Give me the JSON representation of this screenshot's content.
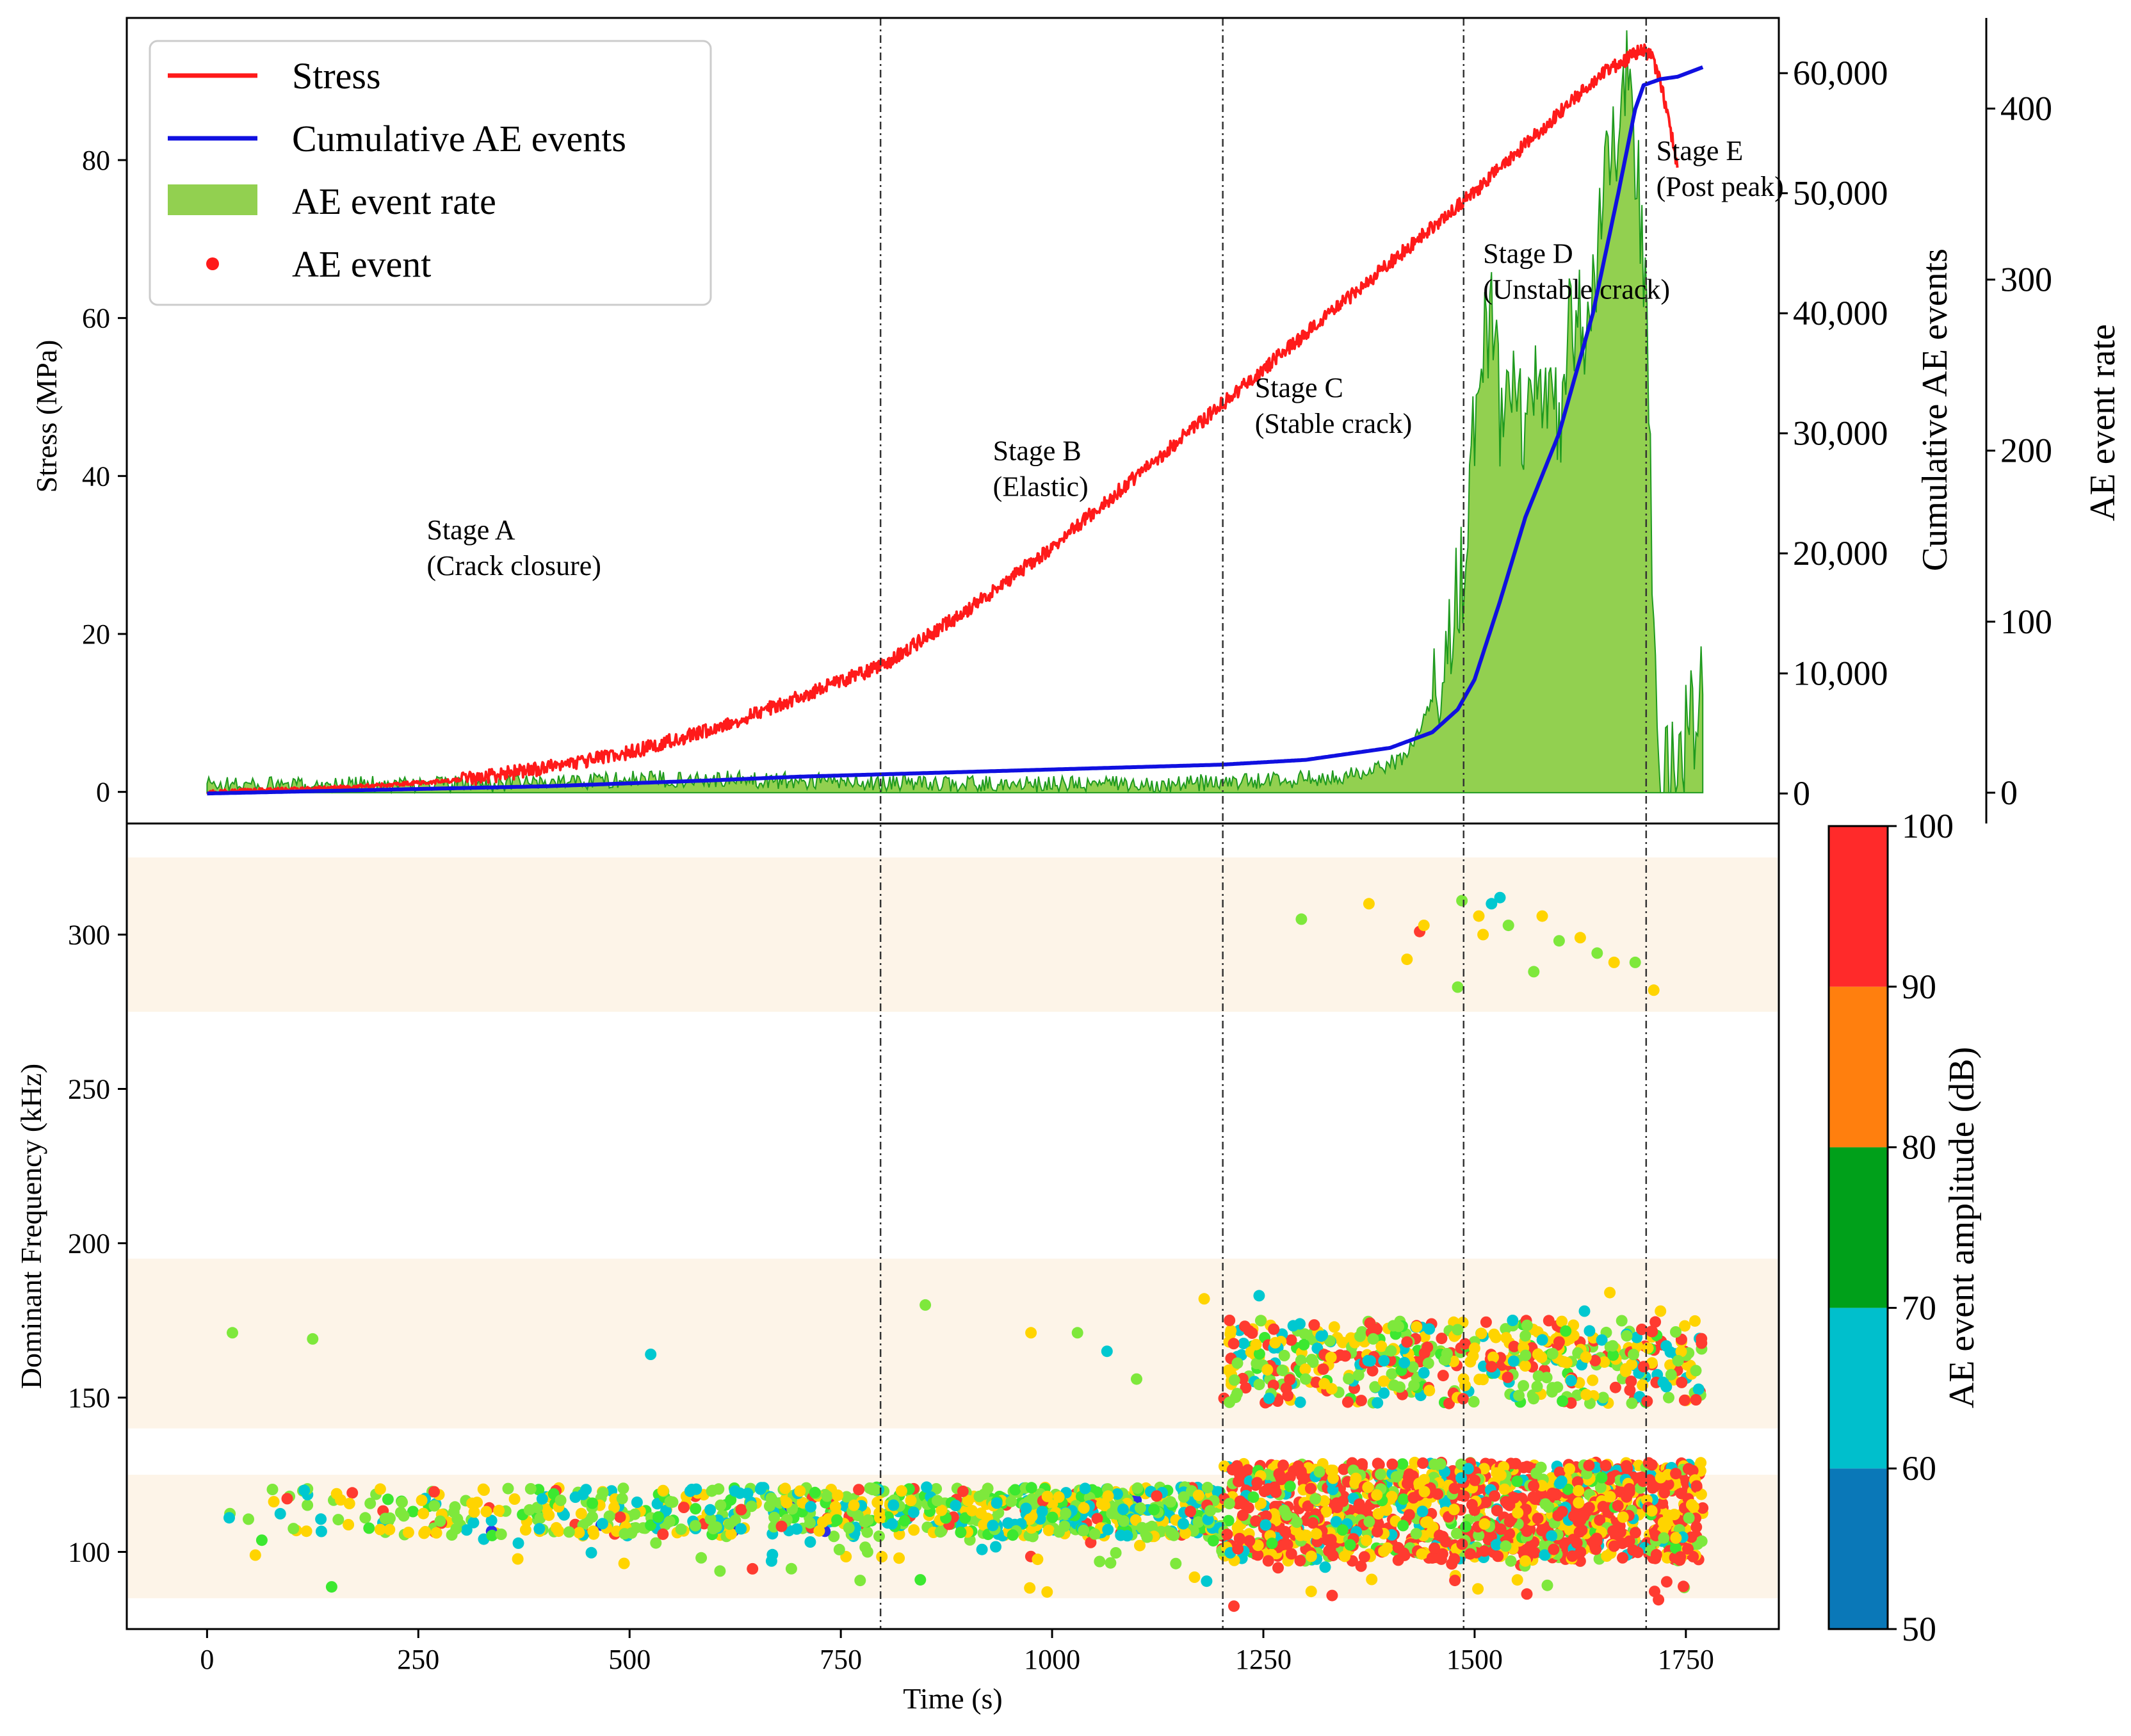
{
  "chart_data": [
    {
      "type": "line",
      "panel": "top",
      "xlabel": "",
      "ylabel": "Stress (MPa)",
      "xlim": [
        -95,
        1860
      ],
      "ylim": [
        -4,
        98
      ],
      "yticks": [
        0,
        20,
        40,
        60,
        80
      ],
      "grid": false,
      "legend": {
        "position": "top-left",
        "entries": [
          {
            "label": "Stress",
            "kind": "line",
            "color": "#ff1a1a"
          },
          {
            "label": "Cumulative AE events",
            "kind": "line",
            "color": "#1010e0"
          },
          {
            "label": "AE event rate",
            "kind": "patch",
            "color": "#92d050"
          },
          {
            "label": "AE event",
            "kind": "dot",
            "color": "#ff1a1a"
          }
        ]
      },
      "series": [
        {
          "name": "Stress",
          "axis": "Stress (MPa)",
          "color": "#ff1a1a",
          "x": [
            0,
            100,
            200,
            300,
            400,
            500,
            600,
            700,
            800,
            900,
            1000,
            1100,
            1200,
            1300,
            1400,
            1500,
            1600,
            1650,
            1700,
            1710,
            1720,
            1730,
            1740
          ],
          "y": [
            0,
            0.3,
            0.8,
            1.5,
            3,
            5,
            8,
            12,
            16,
            23,
            31,
            40,
            49,
            58,
            67,
            76,
            86,
            91,
            94,
            93,
            90,
            85,
            79
          ]
        },
        {
          "name": "Cumulative AE events",
          "axis": "Cumulative AE events",
          "color": "#1010e0",
          "x": [
            0,
            100,
            200,
            300,
            400,
            500,
            600,
            700,
            800,
            900,
            1000,
            1100,
            1200,
            1300,
            1400,
            1450,
            1480,
            1500,
            1530,
            1560,
            1600,
            1640,
            1670,
            1690,
            1700,
            1720,
            1740,
            1770
          ],
          "y": [
            0,
            150,
            300,
            450,
            600,
            850,
            1100,
            1400,
            1600,
            1800,
            2000,
            2200,
            2400,
            2800,
            3800,
            5100,
            7000,
            9500,
            16000,
            23000,
            30000,
            40000,
            50000,
            57000,
            59000,
            59500,
            59700,
            60500
          ]
        },
        {
          "name": "AE event rate",
          "axis": "AE event rate",
          "color": "#92d050",
          "x": [
            0,
            100,
            200,
            300,
            400,
            500,
            600,
            700,
            800,
            900,
            1000,
            1100,
            1200,
            1300,
            1380,
            1420,
            1450,
            1470,
            1490,
            1500,
            1510,
            1520,
            1530,
            1545,
            1560,
            1580,
            1600,
            1615,
            1630,
            1650,
            1665,
            1680,
            1695,
            1705,
            1710,
            1720,
            1730,
            1745,
            1760,
            1770
          ],
          "y": [
            3,
            2,
            3,
            3,
            4,
            6,
            6,
            5,
            4,
            3,
            3,
            3,
            4,
            6,
            10,
            20,
            50,
            90,
            140,
            210,
            250,
            275,
            220,
            230,
            200,
            240,
            210,
            280,
            260,
            330,
            380,
            420,
            350,
            250,
            120,
            10,
            5,
            20,
            40,
            70
          ]
        }
      ],
      "right_axes": [
        {
          "label": "Cumulative AE events",
          "ylim": [
            -2500,
            64600
          ],
          "ticks": [
            "0",
            "10,000",
            "20,000",
            "30,000",
            "40,000",
            "50,000",
            "60,000"
          ]
        },
        {
          "label": "AE event rate",
          "ylim": [
            -18,
            453
          ],
          "ticks": [
            "0",
            "100",
            "200",
            "300",
            "400"
          ]
        }
      ],
      "vertical_lines": [
        797,
        1202,
        1487,
        1703
      ],
      "annotations": [
        {
          "line1": "Stage A",
          "line2": "(Crack closure)",
          "x": 260,
          "y": 32
        },
        {
          "line1": "Stage B",
          "line2": "(Elastic)",
          "x": 930,
          "y": 42
        },
        {
          "line1": "Stage C",
          "line2": "(Stable crack)",
          "x": 1240,
          "y": 50
        },
        {
          "line1": "Stage D",
          "line2": "(Unstable crack)",
          "x": 1510,
          "y": 67
        },
        {
          "line1": "Stage E",
          "line2": "(Post peak)",
          "x": 1715,
          "y": 80
        }
      ]
    },
    {
      "type": "scatter",
      "panel": "bottom",
      "xlabel": "Time (s)",
      "ylabel": "Dominant Frequency (kHz)",
      "xlim": [
        -95,
        1860
      ],
      "ylim": [
        75,
        336
      ],
      "xticks": [
        0,
        250,
        500,
        750,
        1000,
        1250,
        1500,
        1750
      ],
      "yticks": [
        100,
        150,
        200,
        250,
        300
      ],
      "frequency_bands": [
        [
          85,
          125
        ],
        [
          140,
          195
        ],
        [
          275,
          325
        ]
      ],
      "band_color": "#fdf4e8",
      "colorbar": {
        "label": "AE event amplitude (dB)",
        "range": [
          50,
          100
        ],
        "ticks": [
          "50",
          "60",
          "70",
          "80",
          "90",
          "100"
        ],
        "bins": [
          {
            "from": 50,
            "to": 60,
            "color": "#0a78b8"
          },
          {
            "from": 60,
            "to": 70,
            "color": "#00bfcc"
          },
          {
            "from": 70,
            "to": 80,
            "color": "#00a01a"
          },
          {
            "from": 80,
            "to": 90,
            "color": "#ff7f0e"
          },
          {
            "from": 90,
            "to": 100,
            "color": "#ff2a2a"
          }
        ]
      },
      "point_colors": [
        "#00c8d0",
        "#7ee83c",
        "#3ce830",
        "#ffd400",
        "#ff3b30",
        "#2c2ee8"
      ],
      "series": [
        {
          "x": [
            30,
            125,
            525,
            850,
            975,
            1030,
            1065,
            1100,
            1180,
            1210,
            1245,
            1300,
            1330,
            1380,
            1420,
            1440,
            1480,
            1500,
            1520,
            1545,
            1560,
            1575,
            1600,
            1630,
            1660,
            1680,
            1700,
            1720
          ],
          "y": [
            171,
            169,
            164,
            180,
            171,
            171,
            165,
            156,
            182,
            175,
            183,
            156,
            163,
            169,
            168,
            158,
            172,
            166,
            160,
            175,
            170,
            164,
            168,
            178,
            184,
            170,
            160,
            178
          ],
          "amplitude": [
            72,
            72,
            65,
            72,
            85,
            72,
            65,
            72,
            85,
            95,
            65,
            72,
            85,
            72,
            95,
            65,
            72,
            85,
            95,
            65,
            72,
            85,
            95,
            65,
            85,
            72,
            95,
            85
          ]
        },
        {
          "x": [
            1295,
            1375,
            1420,
            1435,
            1440,
            1480,
            1485,
            1505,
            1510,
            1520,
            1530,
            1540,
            1570,
            1580,
            1600,
            1625,
            1645,
            1665,
            1690,
            1712
          ],
          "y": [
            305,
            310,
            292,
            301,
            303,
            283,
            311,
            306,
            300,
            310,
            312,
            303,
            288,
            306,
            298,
            299,
            294,
            291,
            291,
            282
          ],
          "amplitude": [
            72,
            85,
            85,
            95,
            85,
            72,
            72,
            85,
            85,
            65,
            65,
            72,
            72,
            85,
            72,
            85,
            72,
            85,
            72,
            85
          ]
        }
      ]
    }
  ]
}
